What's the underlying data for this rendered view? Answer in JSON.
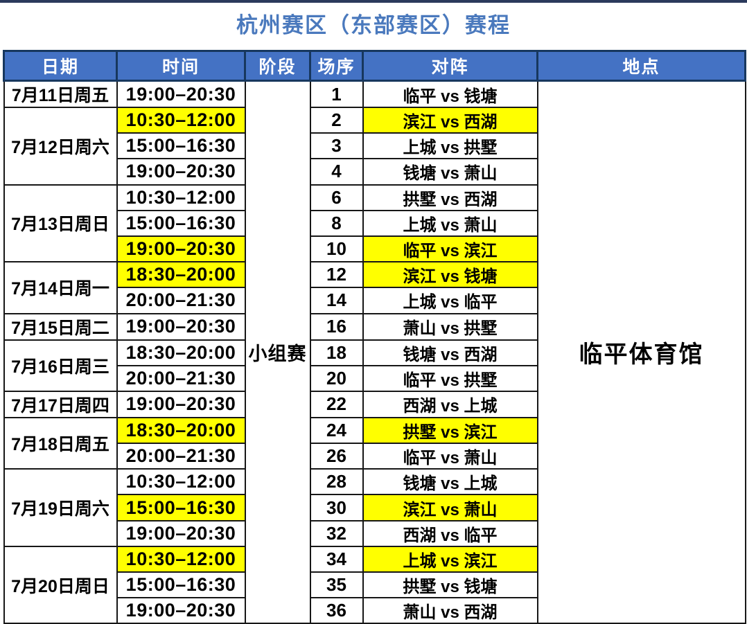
{
  "title": "杭州赛区（东部赛区）赛程",
  "colors": {
    "header_bg": "#4472c4",
    "header_border": "#17375e",
    "header_text": "#ffffff",
    "title_text": "#4a79bd",
    "highlight": "#ffff00",
    "cell_border": "#161616",
    "top_strip": "#2b3a5c"
  },
  "table": {
    "headers": [
      "日期",
      "时间",
      "阶段",
      "场序",
      "对阵",
      "地点"
    ],
    "stage_label": "小组赛",
    "venue_label": "临平体育馆",
    "date_groups": [
      {
        "date": "7月11日周五",
        "matches": [
          {
            "time": "19:00–20:30",
            "no": "1",
            "match": "临平 vs 钱塘",
            "highlight": false
          }
        ]
      },
      {
        "date": "7月12日周六",
        "matches": [
          {
            "time": "10:30–12:00",
            "no": "2",
            "match": "滨江 vs 西湖",
            "highlight": true
          },
          {
            "time": "15:00–16:30",
            "no": "3",
            "match": "上城 vs 拱墅",
            "highlight": false
          },
          {
            "time": "19:00–20:30",
            "no": "4",
            "match": "钱塘 vs 萧山",
            "highlight": false
          }
        ]
      },
      {
        "date": "7月13日周日",
        "matches": [
          {
            "time": "10:30–12:00",
            "no": "6",
            "match": "拱墅 vs 西湖",
            "highlight": false
          },
          {
            "time": "15:00–16:30",
            "no": "8",
            "match": "上城 vs 萧山",
            "highlight": false
          },
          {
            "time": "19:00–20:30",
            "no": "10",
            "match": "临平 vs 滨江",
            "highlight": true
          }
        ]
      },
      {
        "date": "7月14日周一",
        "matches": [
          {
            "time": "18:30–20:00",
            "no": "12",
            "match": "滨江 vs 钱塘",
            "highlight": true
          },
          {
            "time": "20:00–21:30",
            "no": "14",
            "match": "上城 vs 临平",
            "highlight": false
          }
        ]
      },
      {
        "date": "7月15日周二",
        "matches": [
          {
            "time": "19:00–20:30",
            "no": "16",
            "match": "萧山 vs 拱墅",
            "highlight": false
          }
        ]
      },
      {
        "date": "7月16日周三",
        "matches": [
          {
            "time": "18:30–20:00",
            "no": "18",
            "match": "钱塘 vs 西湖",
            "highlight": false
          },
          {
            "time": "20:00–21:30",
            "no": "20",
            "match": "临平 vs 拱墅",
            "highlight": false
          }
        ]
      },
      {
        "date": "7月17日周四",
        "matches": [
          {
            "time": "19:00–20:30",
            "no": "22",
            "match": "西湖 vs 上城",
            "highlight": false
          }
        ]
      },
      {
        "date": "7月18日周五",
        "matches": [
          {
            "time": "18:30–20:00",
            "no": "24",
            "match": "拱墅 vs 滨江",
            "highlight": true
          },
          {
            "time": "20:00–21:30",
            "no": "26",
            "match": "临平 vs 萧山",
            "highlight": false
          }
        ]
      },
      {
        "date": "7月19日周六",
        "matches": [
          {
            "time": "10:30–12:00",
            "no": "28",
            "match": "钱塘 vs 上城",
            "highlight": false
          },
          {
            "time": "15:00–16:30",
            "no": "30",
            "match": "滨江 vs 萧山",
            "highlight": true
          },
          {
            "time": "19:00–20:30",
            "no": "32",
            "match": "西湖 vs 临平",
            "highlight": false
          }
        ]
      },
      {
        "date": "7月20日周日",
        "matches": [
          {
            "time": "10:30–12:00",
            "no": "34",
            "match": "上城 vs 滨江",
            "highlight": true
          },
          {
            "time": "15:00–16:30",
            "no": "35",
            "match": "拱墅 vs 钱塘",
            "highlight": false
          },
          {
            "time": "19:00–20:30",
            "no": "36",
            "match": "萧山 vs 西湖",
            "highlight": false
          }
        ]
      }
    ]
  }
}
